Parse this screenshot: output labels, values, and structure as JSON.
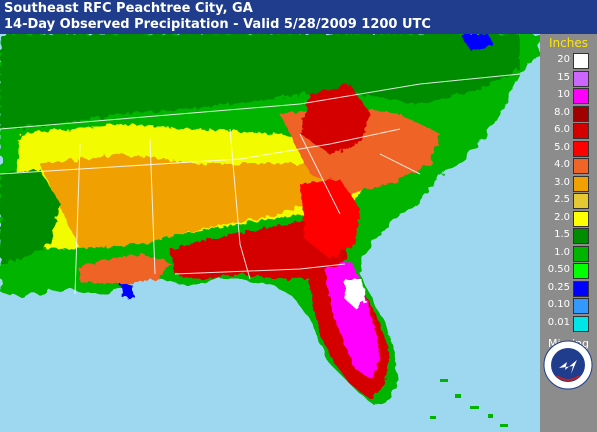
{
  "header": {
    "line1": "Southeast RFC Peachtree City, GA",
    "line2": "14-Day Observed Precipitation - Valid 5/28/2009 1200 UTC"
  },
  "legend": {
    "title": "Inches",
    "items": [
      {
        "label": "20",
        "color": "#ffffff"
      },
      {
        "label": "15",
        "color": "#cc66ff"
      },
      {
        "label": "10",
        "color": "#ff00ff"
      },
      {
        "label": "8.0",
        "color": "#a00000"
      },
      {
        "label": "6.0",
        "color": "#d40000"
      },
      {
        "label": "5.0",
        "color": "#ff0000"
      },
      {
        "label": "4.0",
        "color": "#f06428"
      },
      {
        "label": "3.0",
        "color": "#f0a000"
      },
      {
        "label": "2.5",
        "color": "#e6c832"
      },
      {
        "label": "2.0",
        "color": "#ffff00"
      },
      {
        "label": "1.5",
        "color": "#008c00"
      },
      {
        "label": "1.0",
        "color": "#00b400"
      },
      {
        "label": "0.50",
        "color": "#00ff00"
      },
      {
        "label": "0.25",
        "color": "#0000ff"
      },
      {
        "label": "0.10",
        "color": "#3399ff"
      },
      {
        "label": "0.01",
        "color": "#00e6e6"
      }
    ],
    "missing_label": "Missing"
  },
  "seal": {
    "text": "NATIONAL WEATHER SERVICE",
    "sub": "U.S. DOC-NOAA"
  },
  "map": {
    "water_color": "#9ed8f0",
    "state_line_color": "#ffffff"
  }
}
